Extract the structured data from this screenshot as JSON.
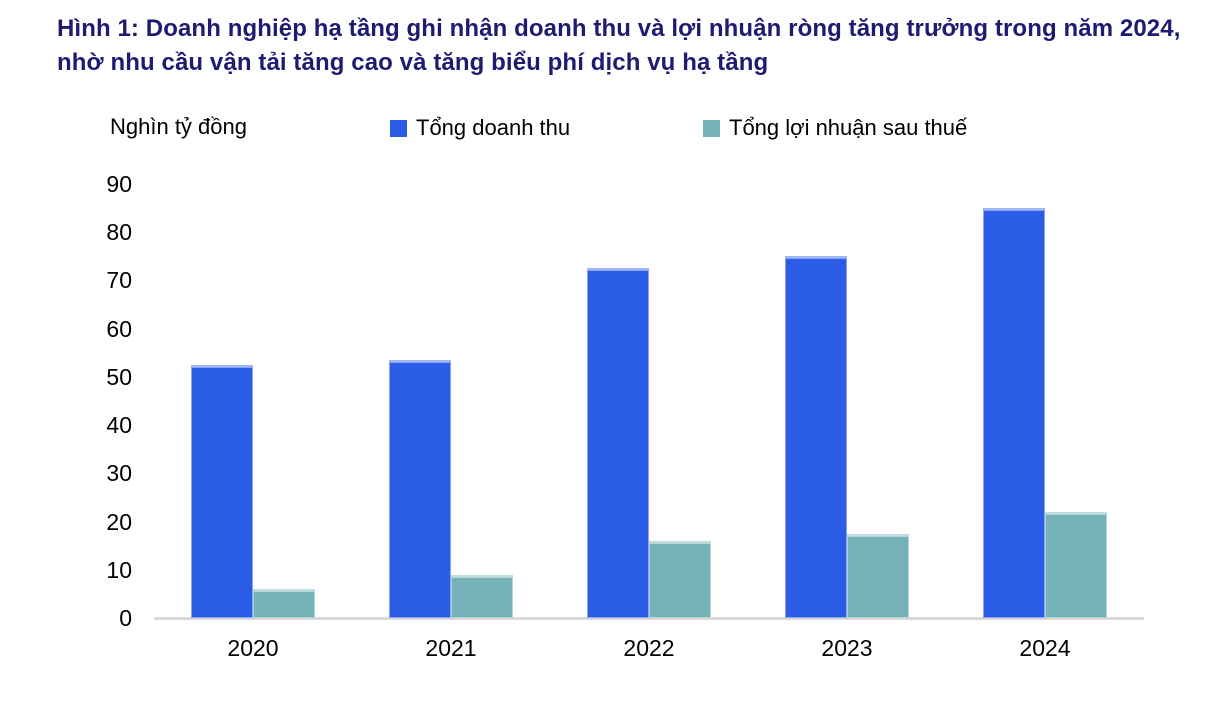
{
  "figure": {
    "title": "Hình 1: Doanh nghiệp hạ tầng ghi nhận doanh thu và lợi nhuận ròng tăng trưởng trong năm 2024, nhờ nhu cầu vận tải tăng cao và tăng biểu phí dịch vụ hạ tầng"
  },
  "chart_data": {
    "type": "bar",
    "title": "",
    "unit_label": "Nghìn tỷ đồng",
    "categories": [
      "2020",
      "2021",
      "2022",
      "2023",
      "2024"
    ],
    "series": [
      {
        "name": "Tổng doanh thu",
        "color": "#2b5ce6",
        "values": [
          52.5,
          53.5,
          72.5,
          75,
          85
        ]
      },
      {
        "name": "Tổng lợi nhuận sau thuế",
        "color": "#74b2b8",
        "values": [
          6,
          9,
          16,
          17.5,
          22
        ]
      }
    ],
    "xlabel": "",
    "ylabel": "Nghìn tỷ đồng",
    "ylim": [
      0,
      90
    ],
    "ytick_step": 10,
    "grid": false,
    "legend_position": "top"
  },
  "colors": {
    "title_text": "#1e1b70",
    "axis_line": "#d9d9d9",
    "tick_text": "#000000",
    "revenue_bar": "#2b5ce6",
    "profit_bar": "#74b2b8"
  }
}
